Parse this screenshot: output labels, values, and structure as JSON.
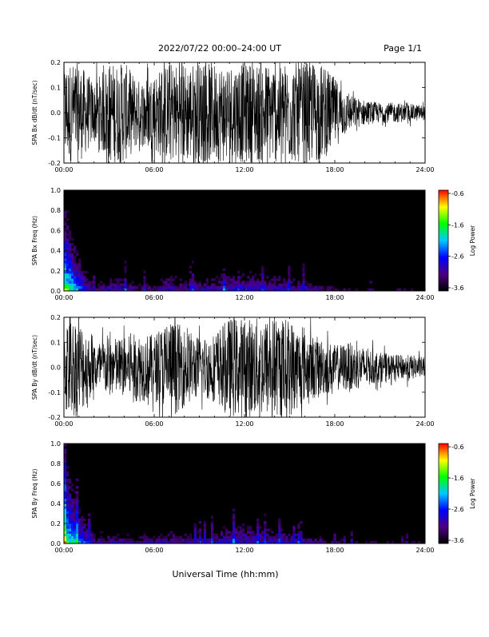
{
  "header": {
    "title": "2022/07/22  00:00–24:00 UT",
    "page_label": "Page 1/1"
  },
  "xlabel": "Universal Time (hh:mm)",
  "colorbar": {
    "label": "Log Power",
    "ticks": [
      "-0.6",
      "-1.6",
      "-2.6",
      "-3.6"
    ],
    "range": [
      -3.6,
      -0.6
    ],
    "colors": [
      "#000000",
      "#4b0082",
      "#0000ff",
      "#00c8ff",
      "#00ff00",
      "#ffff00",
      "#ff0000"
    ]
  },
  "chart_data": [
    {
      "type": "line",
      "ylabel": "SPA Bx dB/dt (nT/sec)",
      "xlim": [
        "00:00",
        "24:00"
      ],
      "ylim": [
        -0.2,
        0.2
      ],
      "x_ticks": [
        "00:00",
        "06:00",
        "12:00",
        "18:00",
        "24:00"
      ],
      "y_ticks": [
        "-0.2",
        "-0.1",
        "0.0",
        "0.1",
        "0.2"
      ],
      "grid": false,
      "x_hours": [
        0,
        1,
        2,
        3,
        4,
        5,
        6,
        7,
        8,
        9,
        10,
        11,
        12,
        13,
        14,
        15,
        16,
        17,
        18,
        19,
        20,
        21,
        22,
        23,
        24
      ],
      "amplitude_envelope": [
        0.2,
        0.2,
        0.12,
        0.2,
        0.2,
        0.13,
        0.16,
        0.2,
        0.2,
        0.2,
        0.2,
        0.2,
        0.2,
        0.2,
        0.2,
        0.2,
        0.2,
        0.2,
        0.14,
        0.07,
        0.05,
        0.04,
        0.04,
        0.035,
        0.03
      ]
    },
    {
      "type": "heatmap",
      "ylabel": "SPA Bx Freq (Hz)",
      "xlim": [
        "00:00",
        "24:00"
      ],
      "ylim": [
        0.0,
        1.0
      ],
      "x_ticks": [
        "00:00",
        "06:00",
        "12:00",
        "18:00",
        "24:00"
      ],
      "y_ticks": [
        "0.0",
        "0.2",
        "0.4",
        "0.6",
        "0.8",
        "1.0"
      ],
      "value_label": "Log Power",
      "value_range": [
        -3.6,
        -0.6
      ],
      "x_hours": [
        0,
        1,
        2,
        3,
        4,
        5,
        6,
        7,
        8,
        9,
        10,
        11,
        12,
        13,
        14,
        15,
        16,
        17,
        18,
        19,
        20,
        21,
        22,
        23,
        24
      ],
      "low_freq_log_power": [
        -1.0,
        -2.0,
        -2.8,
        -2.6,
        -2.6,
        -2.9,
        -2.8,
        -2.5,
        -2.7,
        -2.6,
        -2.6,
        -2.4,
        -2.4,
        -2.5,
        -2.5,
        -2.6,
        -2.7,
        -2.8,
        -3.0,
        -3.1,
        -3.1,
        -3.1,
        -3.2,
        -3.2,
        -3.2
      ]
    },
    {
      "type": "line",
      "ylabel": "SPA By dB/dt (nT/sec)",
      "xlim": [
        "00:00",
        "24:00"
      ],
      "ylim": [
        -0.2,
        0.2
      ],
      "x_ticks": [
        "00:00",
        "06:00",
        "12:00",
        "18:00",
        "24:00"
      ],
      "y_ticks": [
        "-0.2",
        "-0.1",
        "0.0",
        "0.1",
        "0.2"
      ],
      "grid": false,
      "x_hours": [
        0,
        1,
        2,
        3,
        4,
        5,
        6,
        7,
        8,
        9,
        10,
        11,
        12,
        13,
        14,
        15,
        16,
        17,
        18,
        19,
        20,
        21,
        22,
        23,
        24
      ],
      "amplitude_envelope": [
        0.2,
        0.2,
        0.1,
        0.12,
        0.12,
        0.14,
        0.13,
        0.2,
        0.16,
        0.12,
        0.14,
        0.2,
        0.2,
        0.2,
        0.2,
        0.2,
        0.14,
        0.12,
        0.09,
        0.1,
        0.08,
        0.06,
        0.05,
        0.05,
        0.04
      ]
    },
    {
      "type": "heatmap",
      "ylabel": "SPA By Freq (Hz)",
      "xlim": [
        "00:00",
        "24:00"
      ],
      "ylim": [
        0.0,
        1.0
      ],
      "x_ticks": [
        "00:00",
        "06:00",
        "12:00",
        "18:00",
        "24:00"
      ],
      "y_ticks": [
        "0.0",
        "0.2",
        "0.4",
        "0.6",
        "0.8",
        "1.0"
      ],
      "value_label": "Log Power",
      "value_range": [
        -3.6,
        -0.6
      ],
      "x_hours": [
        0,
        1,
        2,
        3,
        4,
        5,
        6,
        7,
        8,
        9,
        10,
        11,
        12,
        13,
        14,
        15,
        16,
        17,
        18,
        19,
        20,
        21,
        22,
        23,
        24
      ],
      "low_freq_log_power": [
        -1.0,
        -1.9,
        -2.7,
        -2.7,
        -2.7,
        -2.8,
        -2.8,
        -2.6,
        -2.7,
        -2.7,
        -2.6,
        -2.4,
        -2.4,
        -2.5,
        -2.5,
        -2.6,
        -2.7,
        -2.8,
        -3.0,
        -3.1,
        -3.1,
        -3.2,
        -3.2,
        -3.2,
        -3.2
      ]
    }
  ]
}
